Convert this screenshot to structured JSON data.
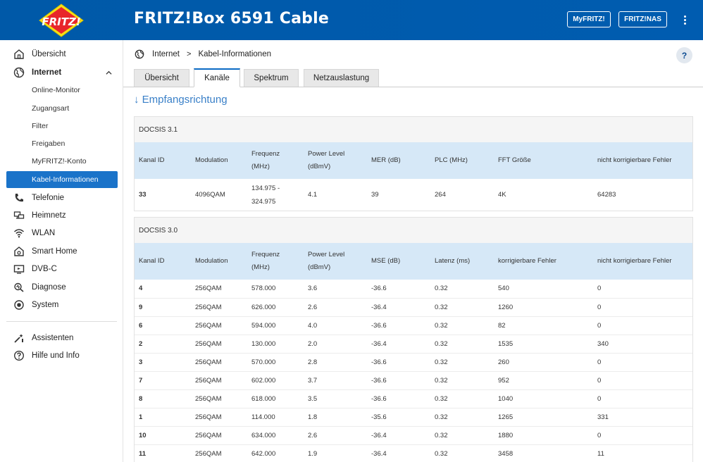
{
  "header": {
    "logo_text": "FRITZ!",
    "title": "FRITZ!Box 6591 Cable",
    "myfritz_label": "MyFRITZ!",
    "nas_label": "FRITZ!NAS"
  },
  "sidebar": {
    "items": [
      {
        "label": "Übersicht",
        "icon": "home-icon"
      },
      {
        "label": "Internet",
        "icon": "globe-icon"
      },
      {
        "label": "Telefonie",
        "icon": "phone-icon"
      },
      {
        "label": "Heimnetz",
        "icon": "network-icon"
      },
      {
        "label": "WLAN",
        "icon": "wifi-icon"
      },
      {
        "label": "Smart Home",
        "icon": "smart-home-icon"
      },
      {
        "label": "DVB-C",
        "icon": "tv-icon"
      },
      {
        "label": "Diagnose",
        "icon": "diagnose-icon"
      },
      {
        "label": "System",
        "icon": "system-icon"
      },
      {
        "label": "Assistenten",
        "icon": "wizard-icon"
      },
      {
        "label": "Hilfe und Info",
        "icon": "help-icon"
      }
    ],
    "internet_sub": [
      {
        "label": "Online-Monitor"
      },
      {
        "label": "Zugangsart"
      },
      {
        "label": "Filter"
      },
      {
        "label": "Freigaben"
      },
      {
        "label": "MyFRITZ!-Konto"
      },
      {
        "label": "Kabel-Informationen",
        "active": true
      }
    ]
  },
  "breadcrumb": {
    "root": "Internet",
    "separator": ">",
    "current": "Kabel-Informationen"
  },
  "help_label": "?",
  "tabs": [
    {
      "label": "Übersicht"
    },
    {
      "label": "Kanäle",
      "active": true
    },
    {
      "label": "Spektrum"
    },
    {
      "label": "Netzauslastung"
    }
  ],
  "section_title": "↓ Empfangsrichtung",
  "docsis31": {
    "title": "DOCSIS 3.1",
    "headers": [
      "Kanal ID",
      "Modulation",
      "Frequenz (MHz)",
      "Power Level (dBmV)",
      "MER (dB)",
      "PLC (MHz)",
      "FFT Größe",
      "nicht korrigierbare Fehler"
    ],
    "rows": [
      [
        "33",
        "4096QAM",
        "134.975 - 324.975",
        "4.1",
        "39",
        "264",
        "4K",
        "64283"
      ]
    ]
  },
  "docsis30": {
    "title": "DOCSIS 3.0",
    "headers": [
      "Kanal ID",
      "Modulation",
      "Frequenz (MHz)",
      "Power Level (dBmV)",
      "MSE (dB)",
      "Latenz (ms)",
      "korrigierbare Fehler",
      "nicht korrigierbare Fehler"
    ],
    "rows": [
      [
        "4",
        "256QAM",
        "578.000",
        "3.6",
        "-36.6",
        "0.32",
        "540",
        "0"
      ],
      [
        "9",
        "256QAM",
        "626.000",
        "2.6",
        "-36.4",
        "0.32",
        "1260",
        "0"
      ],
      [
        "6",
        "256QAM",
        "594.000",
        "4.0",
        "-36.6",
        "0.32",
        "82",
        "0"
      ],
      [
        "2",
        "256QAM",
        "130.000",
        "2.0",
        "-36.4",
        "0.32",
        "1535",
        "340"
      ],
      [
        "3",
        "256QAM",
        "570.000",
        "2.8",
        "-36.6",
        "0.32",
        "260",
        "0"
      ],
      [
        "7",
        "256QAM",
        "602.000",
        "3.7",
        "-36.6",
        "0.32",
        "952",
        "0"
      ],
      [
        "8",
        "256QAM",
        "618.000",
        "3.5",
        "-36.6",
        "0.32",
        "1040",
        "0"
      ],
      [
        "1",
        "256QAM",
        "114.000",
        "1.8",
        "-35.6",
        "0.32",
        "1265",
        "331"
      ],
      [
        "10",
        "256QAM",
        "634.000",
        "2.6",
        "-36.4",
        "0.32",
        "1880",
        "0"
      ],
      [
        "11",
        "256QAM",
        "642.000",
        "1.9",
        "-36.4",
        "0.32",
        "3458",
        "11"
      ]
    ]
  }
}
